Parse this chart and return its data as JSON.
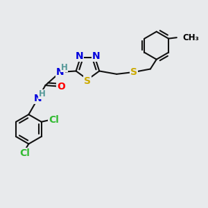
{
  "bg_color": "#e8eaec",
  "atom_colors": {
    "C": "#000000",
    "N": "#0000dd",
    "S": "#ccaa00",
    "O": "#ff0000",
    "H": "#559999",
    "Cl": "#33bb33"
  },
  "bond_color": "#111111",
  "bond_width": 1.5,
  "font_size_atom": 10,
  "font_size_small": 8.5
}
